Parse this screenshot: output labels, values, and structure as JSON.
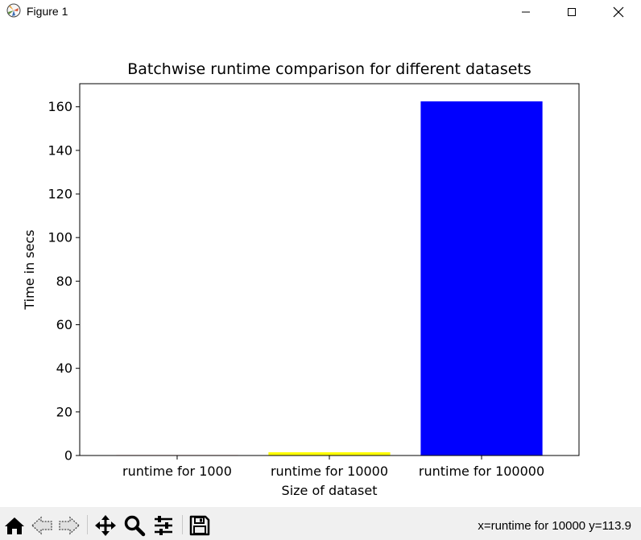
{
  "window": {
    "title": "Figure 1",
    "icon": "matplotlib-icon",
    "controls": [
      "minimize-icon",
      "maximize-icon",
      "close-icon"
    ]
  },
  "chart_data": {
    "type": "bar",
    "title": "Batchwise runtime comparison for different datasets",
    "xlabel": "Size of dataset",
    "ylabel": "Time in secs",
    "categories": [
      "runtime for 1000",
      "runtime for 10000",
      "runtime for 100000"
    ],
    "values": [
      0.2,
      1.5,
      162.5
    ],
    "colors": [
      "#ff0000",
      "#ffff00",
      "#0000ff"
    ],
    "ylim": [
      0,
      170.6
    ],
    "yticks": [
      0,
      20,
      40,
      60,
      80,
      100,
      120,
      140,
      160
    ],
    "grid": false
  },
  "toolbar": {
    "buttons": [
      "home-icon",
      "back-icon",
      "forward-icon",
      "pan-icon",
      "zoom-icon",
      "configure-icon",
      "save-icon"
    ],
    "coordinates": "x=runtime for 10000 y=113.9"
  }
}
